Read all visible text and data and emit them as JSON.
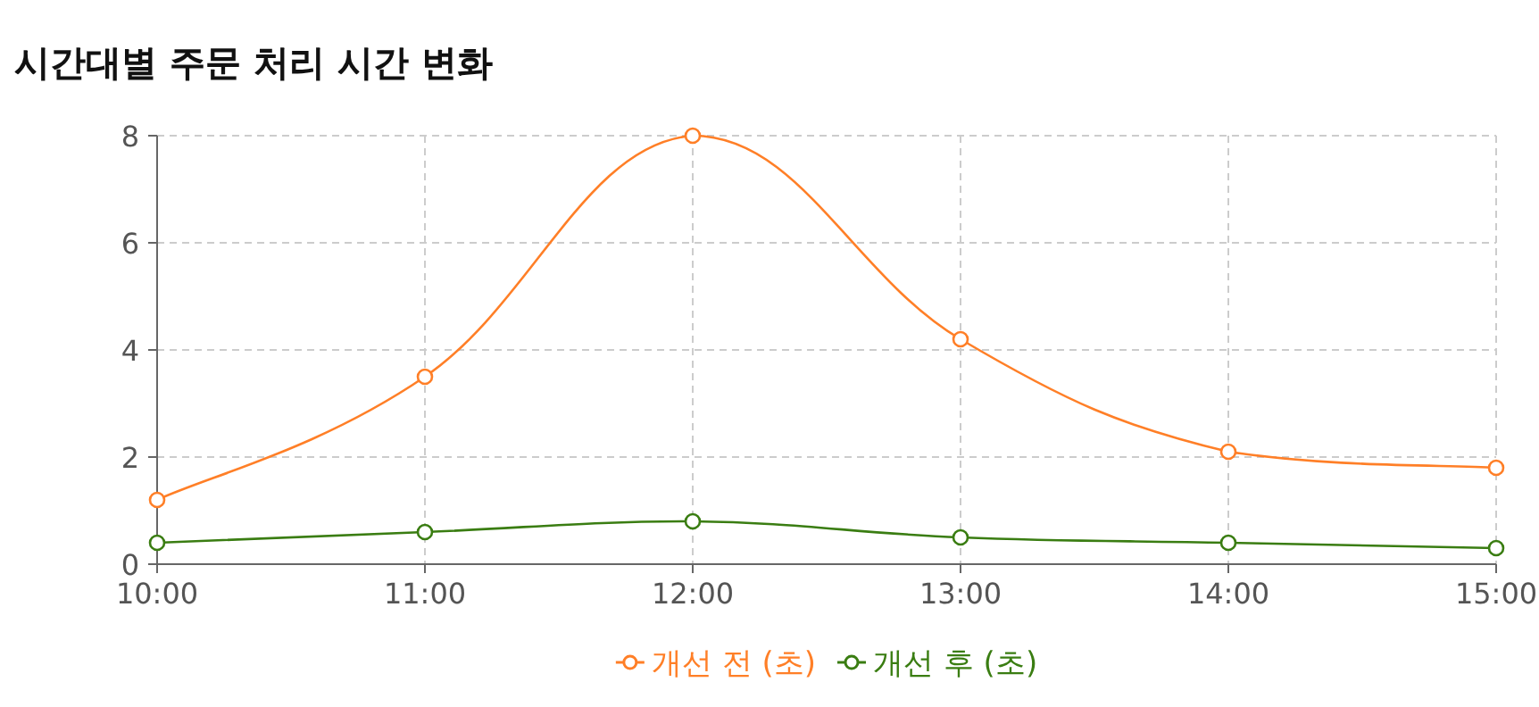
{
  "chart_data": {
    "type": "line",
    "title": "시간대별 주문 처리 시간 변화",
    "categories": [
      "10:00",
      "11:00",
      "12:00",
      "13:00",
      "14:00",
      "15:00"
    ],
    "series": [
      {
        "name": "개선 전 (초)",
        "color": "#ff7f27",
        "values": [
          1.2,
          3.5,
          8,
          4.2,
          2.1,
          1.8
        ]
      },
      {
        "name": "개선 후 (초)",
        "color": "#3a7d12",
        "values": [
          0.4,
          0.6,
          0.8,
          0.5,
          0.4,
          0.3
        ]
      }
    ],
    "ylim": [
      0,
      8
    ],
    "yticks": [
      0,
      2,
      4,
      6,
      8
    ],
    "grid": true,
    "legend": "bottom",
    "marker": "circle"
  }
}
